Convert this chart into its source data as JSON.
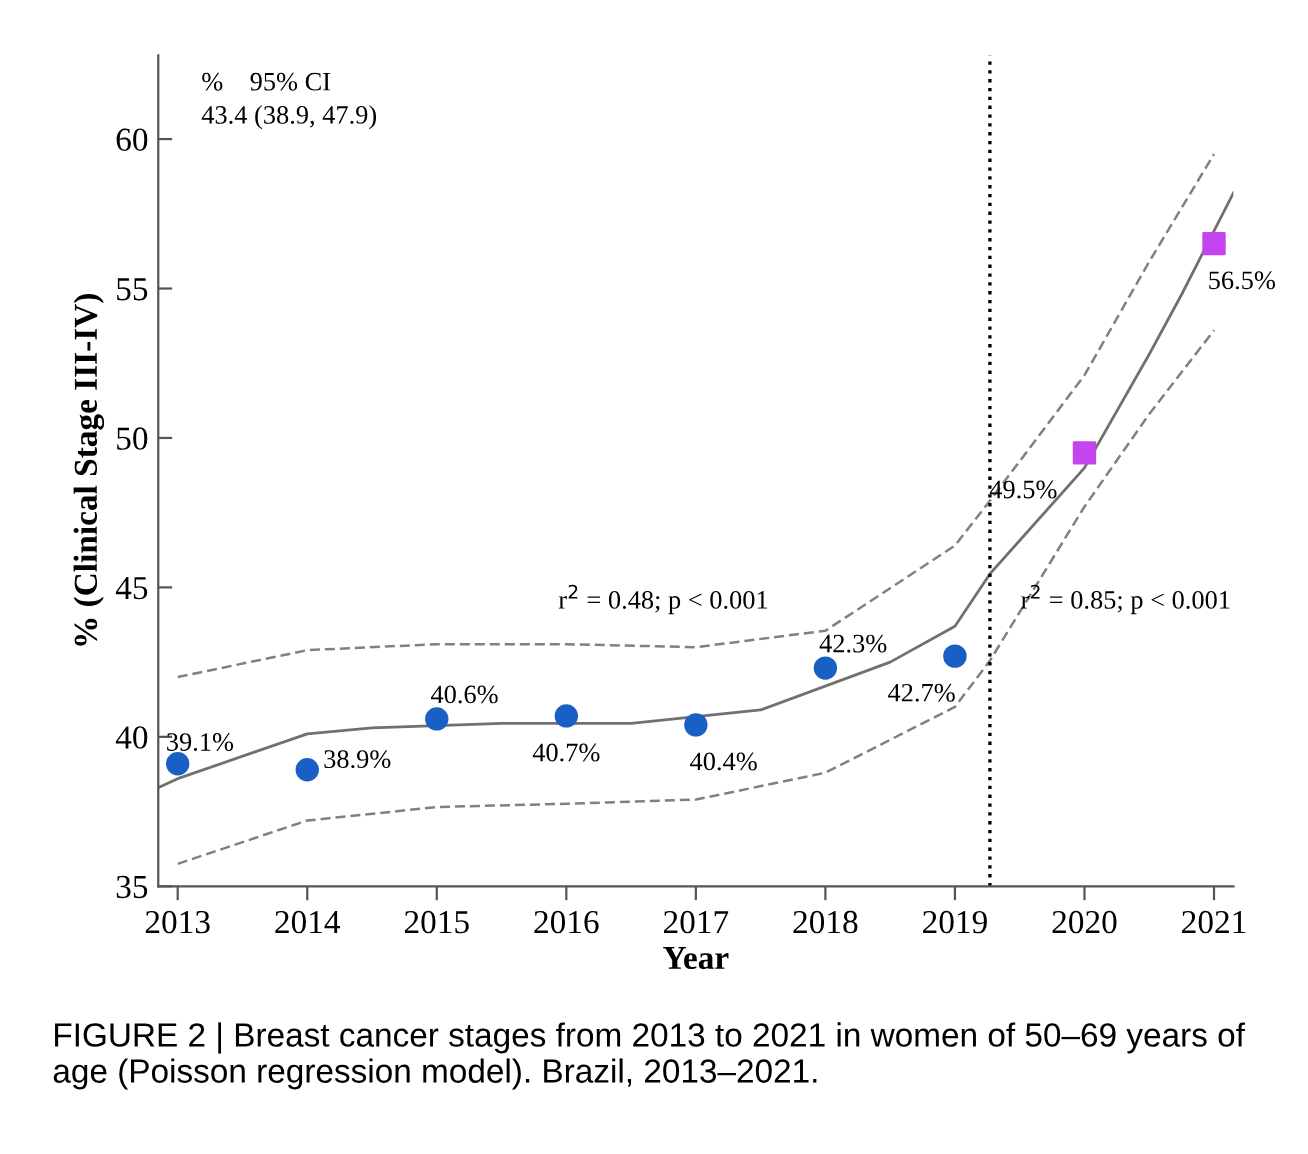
{
  "chart_data": {
    "type": "scatter",
    "xlabel": "Year",
    "ylabel": "% (Clinical Stage III-IV)",
    "xlim": [
      2012.85,
      2021.15
    ],
    "ylim": [
      35,
      62.8
    ],
    "xticks": [
      2013,
      2014,
      2015,
      2016,
      2017,
      2018,
      2019,
      2020,
      2021
    ],
    "yticks": [
      35,
      40,
      45,
      50,
      55,
      60
    ],
    "grid": false,
    "series": [
      {
        "type": "line",
        "color": "#707070",
        "line_style": "solid",
        "marker": "none",
        "x": [
          2012.85,
          2013,
          2014,
          2014.5,
          2015.5,
          2016.5,
          2017.5,
          2018.5,
          2019,
          2019.27,
          2020,
          2020.5,
          2020.75,
          2021.15
        ],
        "values": [
          38.3,
          38.6,
          40.1,
          40.3,
          40.45,
          40.45,
          40.9,
          42.5,
          43.7,
          45.45,
          49.0,
          52.8,
          54.8,
          58.2
        ]
      },
      {
        "type": "line",
        "color": "#808080",
        "line_style": "dashed",
        "marker": "none",
        "x": [
          2013,
          2014,
          2015,
          2016,
          2017,
          2018,
          2019,
          2019.27,
          2020,
          2020.5,
          2021
        ],
        "values": [
          42.0,
          42.9,
          43.1,
          43.1,
          43.0,
          43.55,
          46.4,
          47.9,
          52.1,
          55.9,
          59.5
        ]
      },
      {
        "type": "line",
        "color": "#808080",
        "line_style": "dashed",
        "marker": "none",
        "x": [
          2013,
          2014,
          2015,
          2016,
          2017,
          2018,
          2019,
          2019.27,
          2020,
          2020.5,
          2021
        ],
        "values": [
          35.75,
          37.2,
          37.65,
          37.76,
          37.9,
          38.8,
          41.0,
          42.55,
          47.7,
          50.8,
          53.6
        ]
      },
      {
        "color": "#1a5fc4",
        "marker": "circle",
        "x": [
          2013,
          2014,
          2015,
          2016,
          2017,
          2018,
          2019
        ],
        "values": [
          39.1,
          38.9,
          40.6,
          40.7,
          40.4,
          42.3,
          42.7
        ],
        "value_labels": [
          "39.1%",
          "38.9%",
          "40.6%",
          "40.7%",
          "40.4%",
          "42.3%",
          "42.7%"
        ]
      },
      {
        "color": "#c444ee",
        "marker": "square",
        "x": [
          2020,
          2021
        ],
        "values": [
          49.5,
          56.5
        ],
        "value_labels": [
          "49.5%",
          "56.5%"
        ]
      }
    ],
    "ref_lines": [
      {
        "axis": "x",
        "value": 2019.27,
        "color": "#000000",
        "line_style": "dotted"
      }
    ],
    "annotations": [
      "%    95% CI",
      "43.4 (38.9, 47.9)",
      "r$^{2}$ = 0.48; p < 0.001",
      "r$^{2}$ = 0.85; p < 0.001",
      "FIGURE 2 | Breast cancer stages from 2013 to 2021 in women of 50–69 years of age (Poisson regression model). Brazil, 2013–2021."
    ]
  }
}
